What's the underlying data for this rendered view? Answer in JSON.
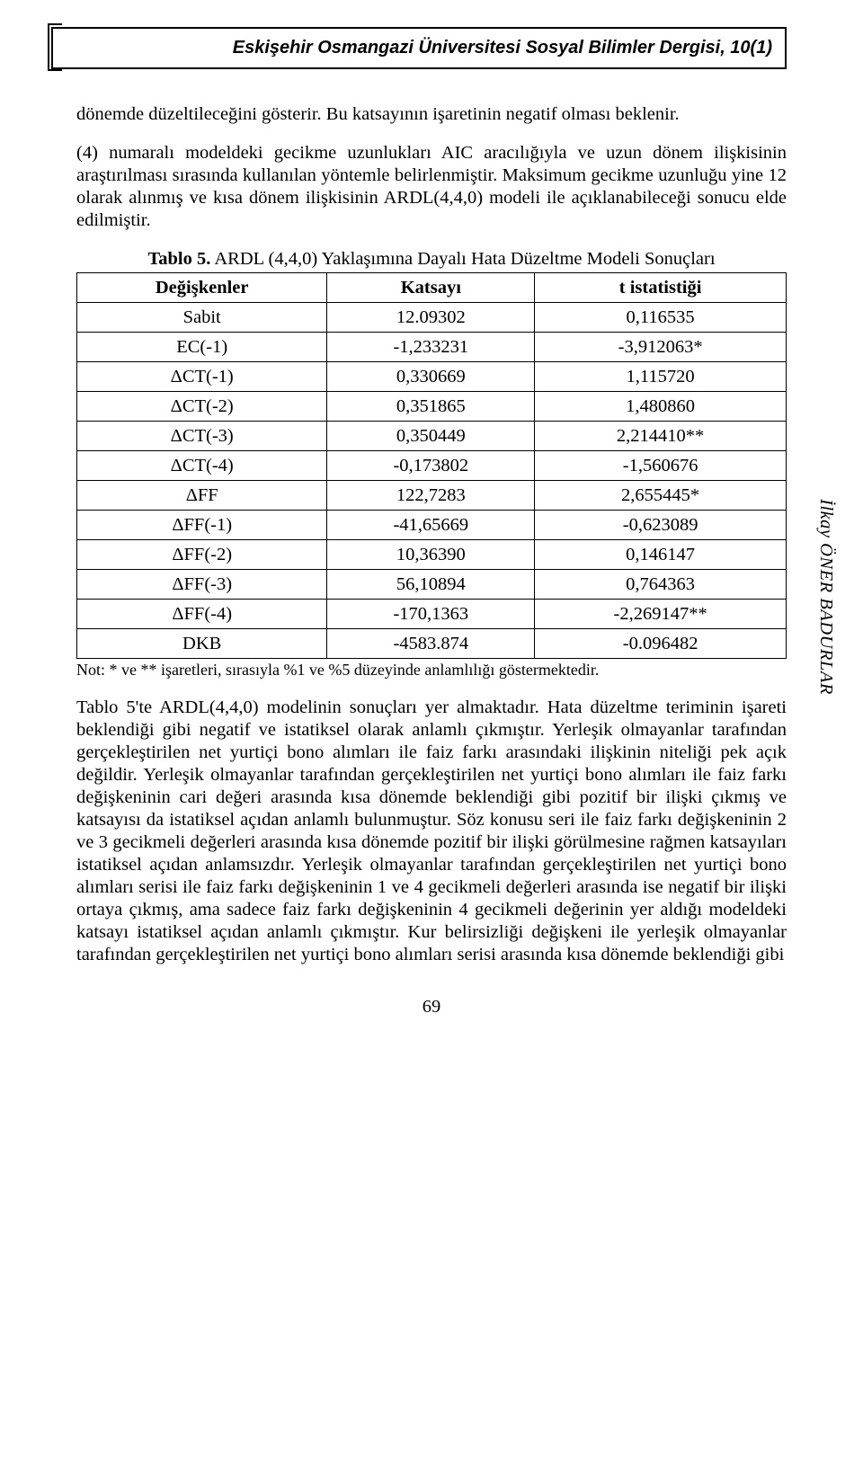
{
  "header": {
    "journal": "Eskişehir Osmangazi Üniversitesi Sosyal Bilimler Dergisi, 10(1)"
  },
  "side_author": "İlkay ÖNER BADURLAR",
  "paragraphs": {
    "p1": "dönemde düzeltileceğini gösterir. Bu katsayının işaretinin negatif olması beklenir.",
    "p2": "(4) numaralı modeldeki gecikme uzunlukları AIC aracılığıyla ve uzun dönem ilişkisinin araştırılması sırasında kullanılan yöntemle belirlenmiştir. Maksimum gecikme uzunluğu yine 12 olarak alınmış ve kısa dönem ilişkisinin ARDL(4,4,0) modeli ile açıklanabileceği sonucu elde edilmiştir.",
    "p3": "Tablo 5'te ARDL(4,4,0) modelinin sonuçları yer almaktadır. Hata düzeltme teriminin işareti beklendiği gibi negatif ve istatiksel olarak anlamlı çıkmıştır. Yerleşik olmayanlar tarafından gerçekleştirilen net yurtiçi bono alımları ile faiz farkı arasındaki ilişkinin niteliği pek açık değildir. Yerleşik olmayanlar tarafından gerçekleştirilen net yurtiçi bono alımları ile faiz farkı değişkeninin cari değeri arasında kısa dönemde beklendiği gibi pozitif bir ilişki çıkmış ve katsayısı da istatiksel açıdan anlamlı bulunmuştur. Söz konusu seri ile faiz farkı değişkeninin 2 ve 3 gecikmeli değerleri arasında kısa dönemde pozitif bir ilişki görülmesine rağmen katsayıları istatiksel açıdan anlamsızdır. Yerleşik olmayanlar tarafından gerçekleştirilen net yurtiçi bono alımları serisi ile faiz farkı değişkeninin 1 ve 4 gecikmeli değerleri arasında ise negatif bir ilişki ortaya çıkmış, ama sadece faiz farkı değişkeninin 4 gecikmeli değerinin yer aldığı modeldeki katsayı istatiksel açıdan anlamlı çıkmıştır. Kur belirsizliği değişkeni ile yerleşik olmayanlar tarafından gerçekleştirilen net yurtiçi bono alımları serisi arasında kısa dönemde beklendiği gibi"
  },
  "table": {
    "title_label": "Tablo 5.",
    "title_rest": " ARDL (4,4,0) Yaklaşımına Dayalı Hata Düzeltme Modeli Sonuçları",
    "columns": [
      "Değişkenler",
      "Katsayı",
      "t istatistiği"
    ],
    "rows": [
      [
        "Sabit",
        "12.09302",
        "0,116535"
      ],
      [
        "EC(-1)",
        "-1,233231",
        "-3,912063*"
      ],
      [
        "ΔCT(-1)",
        "0,330669",
        "1,115720"
      ],
      [
        "ΔCT(-2)",
        "0,351865",
        "1,480860"
      ],
      [
        "ΔCT(-3)",
        "0,350449",
        "2,214410**"
      ],
      [
        "ΔCT(-4)",
        "-0,173802",
        "-1,560676"
      ],
      [
        "ΔFF",
        "122,7283",
        "2,655445*"
      ],
      [
        "ΔFF(-1)",
        "-41,65669",
        "-0,623089"
      ],
      [
        "ΔFF(-2)",
        "10,36390",
        "0,146147"
      ],
      [
        "ΔFF(-3)",
        "56,10894",
        "0,764363"
      ],
      [
        "ΔFF(-4)",
        "-170,1363",
        "-2,269147**"
      ],
      [
        "DKB",
        "-4583.874",
        "-0.096482"
      ]
    ],
    "note": "Not: * ve ** işaretleri, sırasıyla %1 ve %5 düzeyinde anlamlılığı göstermektedir."
  },
  "page_number": "69"
}
